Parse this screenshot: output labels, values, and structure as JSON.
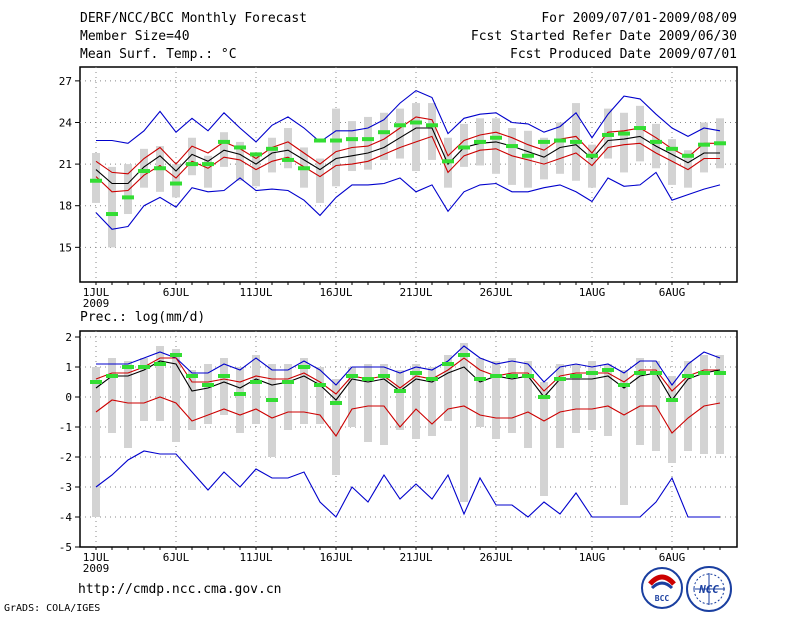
{
  "header": {
    "title": "DERF/NCC/BCC Monthly Forecast",
    "member_size": "Member Size=40",
    "variable": "Mean Surf. Temp.: °C",
    "period": "For 2009/07/01-2009/08/09",
    "fcst_started": "Fcst Started Refer Date 2009/06/30",
    "fcst_produced": "Fcst Produced Date 2009/07/01"
  },
  "panel2_title": "Prec.: log(mm/d)",
  "footer": {
    "url": "http://cmdp.ncc.cma.gov.cn",
    "credit": "GrADS: COLA/IGES",
    "logo_bcc": "BCC",
    "logo_ncc": "NCC"
  },
  "colors": {
    "max_min": "#0000cc",
    "quartile": "#cc0000",
    "mean": "#000000",
    "obs": "#33dd33",
    "spread_box": "#d3d3d3"
  },
  "chart_data": [
    {
      "type": "line",
      "name": "temperature",
      "title": "Mean Surf. Temp.: °C",
      "x": [
        1,
        2,
        3,
        4,
        5,
        6,
        7,
        8,
        9,
        10,
        11,
        12,
        13,
        14,
        15,
        16,
        17,
        18,
        19,
        20,
        21,
        22,
        23,
        24,
        25,
        26,
        27,
        28,
        29,
        30,
        31,
        32,
        33,
        34,
        35,
        36,
        37,
        38,
        39,
        40
      ],
      "xticks": [
        1,
        6,
        11,
        16,
        21,
        26,
        32,
        37
      ],
      "xtick_labels": [
        "1JUL",
        "6JUL",
        "11JUL",
        "16JUL",
        "21JUL",
        "26JUL",
        "1AUG",
        "6AUG"
      ],
      "xyear_label": "2009",
      "ylim": [
        12.5,
        28
      ],
      "yticks": [
        15,
        18,
        21,
        24,
        27
      ],
      "series": [
        {
          "name": "max",
          "values": [
            22.7,
            22.7,
            22.5,
            23.4,
            24.8,
            23.3,
            24.3,
            23.4,
            24.7,
            23.6,
            22.6,
            23.8,
            24.4,
            23.6,
            22.6,
            23.4,
            23.4,
            23.6,
            24.2,
            25.4,
            26.3,
            25.8,
            23.2,
            24.3,
            24.6,
            24.7,
            24.0,
            23.9,
            23.3,
            23.7,
            24.7,
            22.9,
            24.6,
            25.9,
            25.7,
            24.6,
            23.6,
            23.0,
            23.6,
            23.4
          ]
        },
        {
          "name": "q75",
          "values": [
            21.2,
            20.4,
            20.3,
            21.4,
            22.2,
            21.0,
            22.3,
            21.8,
            22.6,
            22.1,
            21.4,
            22.2,
            22.6,
            21.8,
            21.0,
            21.9,
            22.2,
            22.3,
            22.8,
            23.6,
            24.4,
            24.2,
            21.6,
            22.7,
            23.1,
            23.3,
            22.9,
            22.4,
            22.0,
            22.8,
            23.0,
            21.8,
            23.3,
            23.4,
            23.6,
            22.9,
            22.1,
            21.5,
            22.5,
            22.5
          ]
        },
        {
          "name": "mean",
          "values": [
            20.6,
            19.6,
            19.6,
            20.8,
            21.6,
            20.5,
            21.7,
            21.2,
            22.0,
            21.7,
            21.0,
            21.8,
            22.0,
            21.3,
            20.6,
            21.4,
            21.6,
            21.8,
            22.2,
            22.9,
            23.6,
            23.6,
            21.0,
            22.2,
            22.5,
            22.6,
            22.3,
            21.9,
            21.5,
            22.2,
            22.4,
            21.4,
            22.7,
            22.8,
            23.0,
            22.3,
            21.7,
            21.1,
            21.8,
            21.8
          ]
        },
        {
          "name": "q25",
          "values": [
            20.1,
            19.0,
            19.1,
            20.2,
            20.9,
            20.0,
            21.2,
            20.7,
            21.5,
            21.3,
            20.6,
            21.2,
            21.5,
            20.8,
            20.1,
            20.9,
            21.0,
            21.2,
            21.7,
            22.2,
            22.6,
            23.0,
            20.4,
            21.6,
            22.0,
            22.1,
            21.6,
            21.3,
            21.0,
            21.4,
            21.8,
            20.9,
            22.2,
            22.4,
            22.5,
            21.8,
            21.2,
            20.6,
            21.4,
            21.4
          ]
        },
        {
          "name": "min",
          "values": [
            17.5,
            16.3,
            16.5,
            18.0,
            18.6,
            17.9,
            19.3,
            19.0,
            19.1,
            20.0,
            19.1,
            19.2,
            19.1,
            18.4,
            17.3,
            18.6,
            19.5,
            19.5,
            19.6,
            20.0,
            19.0,
            19.5,
            17.6,
            19.0,
            19.5,
            19.6,
            19.0,
            19.0,
            19.3,
            19.5,
            19.0,
            18.3,
            20.0,
            19.4,
            19.5,
            20.4,
            18.4,
            18.8,
            19.2,
            19.5
          ]
        }
      ],
      "box_top": [
        21.8,
        20.8,
        21.0,
        22.1,
        22.3,
        21.0,
        22.9,
        21.6,
        23.3,
        22.6,
        21.8,
        22.9,
        23.6,
        22.2,
        21.4,
        25.0,
        24.1,
        24.4,
        24.7,
        25.0,
        25.4,
        25.4,
        22.9,
        23.9,
        24.3,
        24.3,
        23.6,
        23.4,
        22.9,
        24.0,
        25.4,
        22.4,
        25.0,
        24.7,
        25.2,
        23.9,
        22.8,
        22.0,
        24.0,
        24.3
      ],
      "box_bottom": [
        18.2,
        15.0,
        17.4,
        19.3,
        19.0,
        18.6,
        20.2,
        19.3,
        20.8,
        19.8,
        19.4,
        20.4,
        20.7,
        19.3,
        18.2,
        19.4,
        20.5,
        20.6,
        21.3,
        21.4,
        20.5,
        21.3,
        19.3,
        20.8,
        20.9,
        20.3,
        19.5,
        19.3,
        19.9,
        20.3,
        19.8,
        19.3,
        21.4,
        20.4,
        21.2,
        20.7,
        19.5,
        19.3,
        20.4,
        20.7
      ],
      "obs": [
        19.8,
        17.4,
        18.6,
        20.5,
        20.7,
        19.6,
        21.0,
        21.0,
        22.6,
        22.2,
        21.7,
        22.1,
        21.3,
        20.7,
        22.7,
        22.7,
        22.8,
        22.8,
        23.3,
        23.8,
        24.0,
        23.8,
        21.2,
        22.2,
        22.6,
        22.9,
        22.3,
        21.6,
        22.6,
        22.7,
        22.6,
        21.6,
        23.1,
        23.2,
        23.6,
        22.6,
        22.1,
        21.6,
        22.4,
        22.5
      ]
    },
    {
      "type": "line",
      "name": "precipitation",
      "title": "Prec.: log(mm/d)",
      "x": [
        1,
        2,
        3,
        4,
        5,
        6,
        7,
        8,
        9,
        10,
        11,
        12,
        13,
        14,
        15,
        16,
        17,
        18,
        19,
        20,
        21,
        22,
        23,
        24,
        25,
        26,
        27,
        28,
        29,
        30,
        31,
        32,
        33,
        34,
        35,
        36,
        37,
        38,
        39,
        40
      ],
      "xticks": [
        1,
        6,
        11,
        16,
        21,
        26,
        32,
        37
      ],
      "xtick_labels": [
        "1JUL",
        "6JUL",
        "11JUL",
        "16JUL",
        "21JUL",
        "26JUL",
        "1AUG",
        "6AUG"
      ],
      "xyear_label": "2009",
      "ylim": [
        -5,
        2.2
      ],
      "yticks": [
        -5,
        -4,
        -3,
        -2,
        -1,
        0,
        1,
        2
      ],
      "series": [
        {
          "name": "max",
          "values": [
            1.1,
            1.1,
            1.1,
            1.3,
            1.5,
            1.3,
            0.8,
            0.8,
            1.1,
            0.9,
            1.3,
            0.9,
            0.9,
            1.2,
            0.9,
            0.4,
            1.0,
            1.0,
            1.0,
            0.8,
            1.0,
            0.9,
            1.2,
            1.7,
            1.3,
            1.1,
            1.2,
            1.1,
            0.5,
            1.0,
            1.1,
            1.0,
            1.1,
            0.8,
            1.2,
            1.2,
            0.4,
            1.1,
            1.5,
            1.3
          ]
        },
        {
          "name": "q75",
          "values": [
            0.6,
            0.8,
            0.8,
            1.0,
            1.3,
            1.3,
            0.5,
            0.5,
            0.6,
            0.5,
            0.7,
            0.6,
            0.6,
            0.8,
            0.5,
            0.1,
            0.7,
            0.6,
            0.7,
            0.3,
            0.7,
            0.6,
            0.9,
            1.3,
            0.9,
            0.7,
            0.8,
            0.8,
            0.2,
            0.7,
            0.8,
            0.8,
            0.8,
            0.5,
            0.9,
            0.9,
            0.2,
            0.7,
            0.9,
            0.9
          ]
        },
        {
          "name": "mean",
          "values": [
            0.3,
            0.7,
            0.7,
            0.9,
            1.2,
            1.1,
            0.2,
            0.3,
            0.5,
            0.3,
            0.6,
            0.4,
            0.5,
            0.7,
            0.4,
            -0.1,
            0.6,
            0.5,
            0.6,
            0.2,
            0.6,
            0.5,
            0.8,
            1.0,
            0.5,
            0.7,
            0.6,
            0.7,
            0.0,
            0.6,
            0.6,
            0.6,
            0.7,
            0.3,
            0.7,
            0.8,
            -0.1,
            0.6,
            0.8,
            0.9
          ]
        },
        {
          "name": "q25",
          "values": [
            -0.5,
            -0.1,
            -0.2,
            -0.2,
            0.0,
            -0.2,
            -0.8,
            -0.6,
            -0.4,
            -0.6,
            -0.4,
            -0.7,
            -0.5,
            -0.5,
            -0.6,
            -1.3,
            -0.4,
            -0.3,
            -0.3,
            -1.0,
            -0.4,
            -0.9,
            -0.4,
            -0.3,
            -0.6,
            -0.7,
            -0.7,
            -0.5,
            -0.8,
            -0.5,
            -0.4,
            -0.4,
            -0.3,
            -0.6,
            -0.3,
            -0.3,
            -1.2,
            -0.7,
            -0.3,
            -0.2
          ]
        },
        {
          "name": "min",
          "values": [
            -3.0,
            -2.6,
            -2.1,
            -1.8,
            -1.9,
            -1.9,
            -2.5,
            -3.1,
            -2.5,
            -3.0,
            -2.4,
            -2.7,
            -2.7,
            -2.5,
            -3.5,
            -4.0,
            -3.0,
            -3.5,
            -2.6,
            -3.4,
            -2.9,
            -3.4,
            -2.6,
            -3.9,
            -2.7,
            -3.6,
            -3.6,
            -4.0,
            -3.5,
            -3.9,
            -3.2,
            -4.0,
            -4.0,
            -4.0,
            -4.0,
            -3.5,
            -2.7,
            -4.0,
            -4.0,
            -4.0
          ]
        }
      ],
      "box_top": [
        1.0,
        1.3,
        1.2,
        1.3,
        1.7,
        1.6,
        0.9,
        1.1,
        1.3,
        1.0,
        1.4,
        1.1,
        1.1,
        1.3,
        1.0,
        0.6,
        1.0,
        1.1,
        1.1,
        0.9,
        1.1,
        1.0,
        1.4,
        1.8,
        1.3,
        1.2,
        1.3,
        1.2,
        0.5,
        1.1,
        1.1,
        1.2,
        1.1,
        0.9,
        1.3,
        1.2,
        0.7,
        1.2,
        1.4,
        1.4
      ],
      "box_bottom": [
        -4.0,
        -1.2,
        -1.7,
        -0.8,
        -0.8,
        -1.5,
        -1.1,
        -0.9,
        -0.6,
        -1.2,
        -0.9,
        -2.0,
        -1.1,
        -0.9,
        -0.9,
        -2.6,
        -1.0,
        -1.5,
        -1.6,
        -1.1,
        -1.4,
        -1.3,
        -0.8,
        -3.5,
        -1.0,
        -1.4,
        -1.2,
        -1.7,
        -3.3,
        -1.7,
        -1.2,
        -1.1,
        -1.3,
        -3.6,
        -1.6,
        -1.8,
        -2.2,
        -1.8,
        -1.9,
        -1.9
      ],
      "obs": [
        0.5,
        0.7,
        1.0,
        1.0,
        1.1,
        1.4,
        0.7,
        0.4,
        0.7,
        0.1,
        0.5,
        -0.1,
        0.5,
        1.0,
        0.4,
        -0.2,
        0.7,
        0.6,
        0.7,
        0.2,
        0.8,
        0.6,
        1.1,
        1.4,
        0.6,
        0.7,
        0.7,
        0.7,
        0.0,
        0.6,
        0.7,
        0.8,
        0.9,
        0.4,
        0.8,
        0.8,
        -0.1,
        0.7,
        0.8,
        0.8
      ]
    }
  ]
}
